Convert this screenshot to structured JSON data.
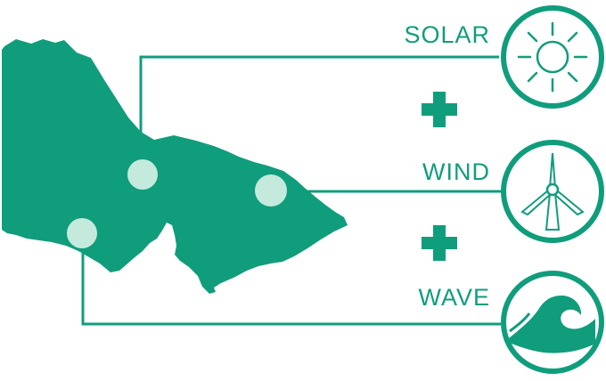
{
  "colors": {
    "accent": "#109d7c",
    "dot": "#c4eadd",
    "background": "#ffffff"
  },
  "labels": {
    "solar": "SOLAR",
    "wind": "WIND",
    "wave": "WAVE"
  },
  "icons": {
    "solar": "sun-icon",
    "wind": "wind-turbine-icon",
    "wave": "wave-icon",
    "connector": "plus-icon",
    "region": "map-shape"
  }
}
